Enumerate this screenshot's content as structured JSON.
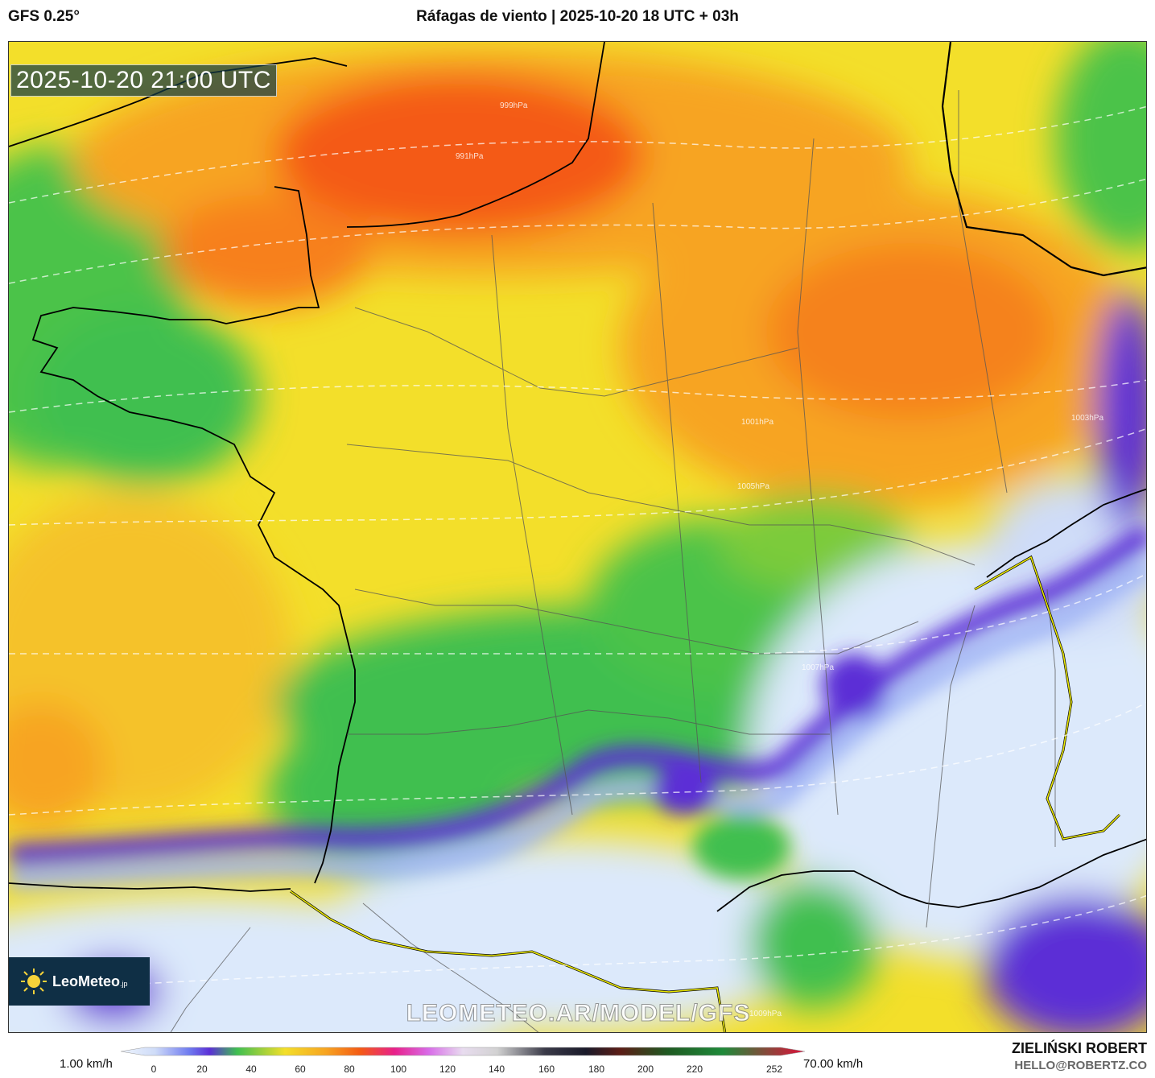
{
  "header": {
    "model": "GFS 0.25°",
    "title": "Ráfagas de viento | 2025-10-20 18 UTC + 03h"
  },
  "map": {
    "valid_time": "2025-10-20 21:00 UTC",
    "watermark": "LEOMETEO.AR/MODEL/GFS",
    "logo_text": "LeoMeteo",
    "logo_suffix": ".jp",
    "isobar_labels": [
      "999hPa",
      "991hPa",
      "1001hPa",
      "1003hPa",
      "1005hPa",
      "1007hPa",
      "1009hPa"
    ]
  },
  "legend": {
    "min_label": "1.00 km/h",
    "max_label": "70.00 km/h",
    "ticks": [
      "0",
      "20",
      "40",
      "60",
      "80",
      "100",
      "120",
      "140",
      "160",
      "180",
      "200",
      "220",
      "252"
    ]
  },
  "credit": {
    "name": "ZIELIŃSKI ROBERT",
    "email": "HELLO@ROBERTZ.CO"
  },
  "colors": {
    "calm": "#dce9fb",
    "blue": "#9fb3f5",
    "purple": "#5b2fd6",
    "green": "#3fbf50",
    "yellow": "#f3df2a",
    "orange": "#f7a421",
    "red_orange": "#f45a14",
    "border_yellow": "#e9e600"
  }
}
